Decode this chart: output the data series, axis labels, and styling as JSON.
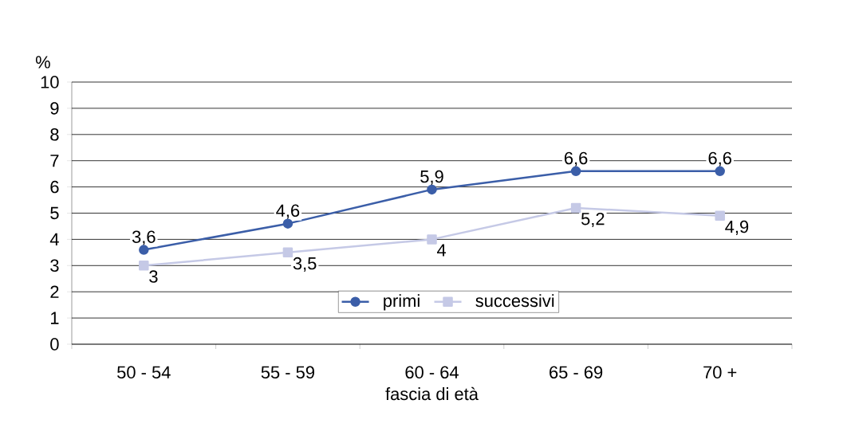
{
  "chart_data": {
    "type": "line",
    "xlabel": "fascia di età",
    "ylabel": "%",
    "categories": [
      "50 - 54",
      "55 - 59",
      "60 - 64",
      "65 - 69",
      "70 +"
    ],
    "series": [
      {
        "name": "primi",
        "color": "#3b5ea8",
        "marker": "circle",
        "values": [
          3.6,
          4.6,
          5.9,
          6.6,
          6.6
        ],
        "value_labels": [
          "3,6",
          "4,6",
          "5,9",
          "6,6",
          "6,6"
        ]
      },
      {
        "name": "successivi",
        "color": "#c5c9e6",
        "marker": "square",
        "values": [
          3,
          3.5,
          4,
          5.2,
          4.9
        ],
        "value_labels": [
          "3",
          "3,5",
          "4",
          "5,2",
          "4,9"
        ]
      }
    ],
    "ylim": [
      0,
      10
    ],
    "yticks": [
      0,
      1,
      2,
      3,
      4,
      5,
      6,
      7,
      8,
      9,
      10
    ],
    "grid": "y",
    "legend": "bottom",
    "line_style": "solid"
  }
}
